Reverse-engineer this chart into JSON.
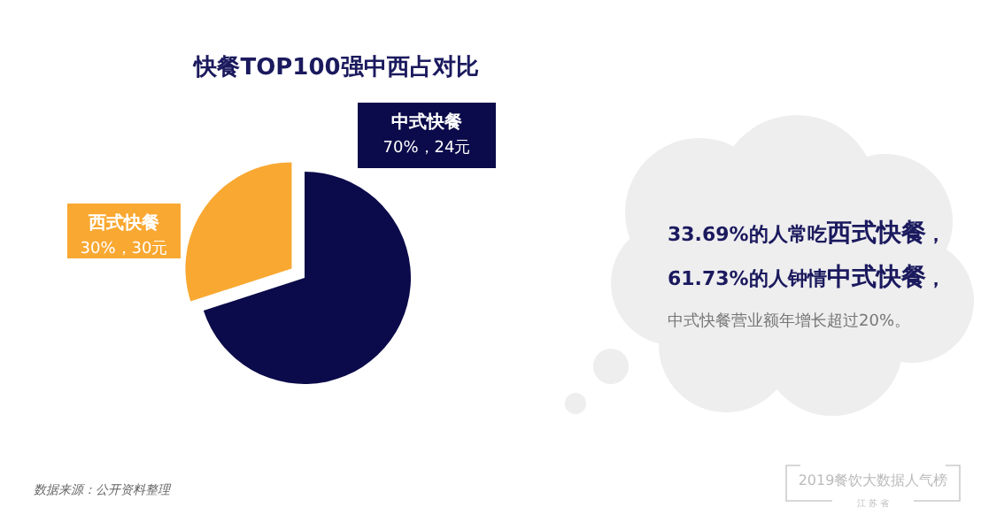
{
  "chart_data": {
    "type": "pie",
    "title": "快餐TOP100强中西占对比",
    "categories": [
      "西式快餐",
      "中式快餐"
    ],
    "values": [
      30,
      70
    ],
    "colors": [
      "#f9a832",
      "#0b0a4a"
    ],
    "value_labels": [
      "30%，30元",
      "70%，24元"
    ],
    "annotations": [
      "33.69%的人常吃**西式快餐**，",
      "61.73%的人钟情**中式快餐**，",
      "中式快餐营业额年增长超过20%。",
      "数据来源：公开资料整理",
      "2019餐饮大数据人气榜",
      "江 苏 省"
    ]
  }
}
